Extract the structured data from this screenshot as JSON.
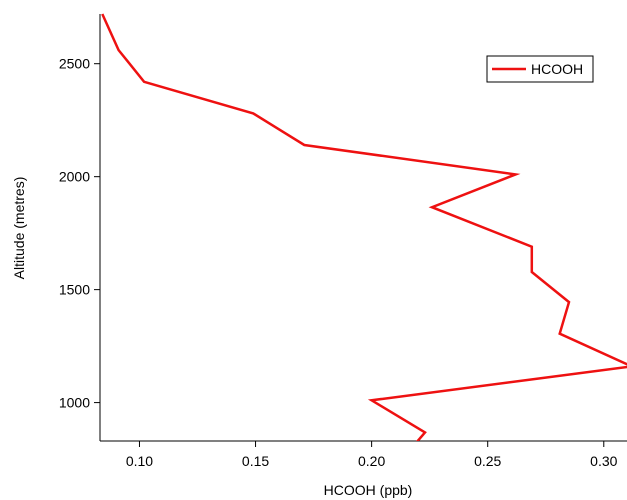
{
  "chart_data": {
    "type": "line",
    "title": "",
    "xlabel": "HCOOH (ppb)",
    "ylabel": "Altitude (metres)",
    "xlim": [
      0.083,
      0.31
    ],
    "ylim": [
      830,
      2720
    ],
    "xticks": [
      {
        "value": 0.1,
        "label": "0.10"
      },
      {
        "value": 0.15,
        "label": "0.15"
      },
      {
        "value": 0.2,
        "label": "0.20"
      },
      {
        "value": 0.25,
        "label": "0.25"
      },
      {
        "value": 0.3,
        "label": "0.30"
      }
    ],
    "yticks": [
      {
        "value": 1000,
        "label": "1000"
      },
      {
        "value": 1500,
        "label": "1500"
      },
      {
        "value": 2000,
        "label": "2000"
      },
      {
        "value": 2500,
        "label": "2500"
      }
    ],
    "grid": false,
    "legend": {
      "position": "top-right",
      "entries": [
        "HCOOH"
      ]
    },
    "series": [
      {
        "name": "HCOOH",
        "color": "#ee1111",
        "points": [
          {
            "x": 0.219,
            "y": 820
          },
          {
            "x": 0.223,
            "y": 868
          },
          {
            "x": 0.2,
            "y": 1010
          },
          {
            "x": 0.312,
            "y": 1160
          },
          {
            "x": 0.281,
            "y": 1305
          },
          {
            "x": 0.285,
            "y": 1445
          },
          {
            "x": 0.269,
            "y": 1578
          },
          {
            "x": 0.269,
            "y": 1690
          },
          {
            "x": 0.226,
            "y": 1865
          },
          {
            "x": 0.262,
            "y": 2010
          },
          {
            "x": 0.171,
            "y": 2140
          },
          {
            "x": 0.149,
            "y": 2280
          },
          {
            "x": 0.102,
            "y": 2420
          },
          {
            "x": 0.091,
            "y": 2560
          },
          {
            "x": 0.084,
            "y": 2720
          }
        ]
      }
    ]
  }
}
